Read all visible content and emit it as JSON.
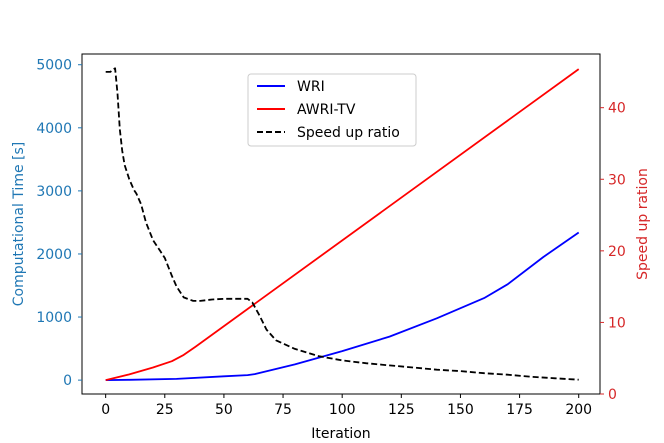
{
  "chart_data": {
    "type": "line",
    "title": "",
    "xlabel": "Iteration",
    "ylabel_left": "Computational Time [s]",
    "ylabel_right": "Speed up ration",
    "xlim": [
      -10,
      209
    ],
    "ylim_left": [
      -220,
      5170
    ],
    "ylim_right": [
      0,
      47.5
    ],
    "x_ticks": [
      0,
      25,
      50,
      75,
      100,
      125,
      150,
      175,
      200
    ],
    "y_ticks_left": [
      0,
      1000,
      2000,
      3000,
      4000,
      5000
    ],
    "y_ticks_right": [
      0,
      10,
      20,
      30,
      40
    ],
    "legend_position": "upper-center",
    "colors": {
      "left_axis": "#1f77b4",
      "right_axis": "#d62728",
      "wri": "#0000ff",
      "awri": "#ff0000",
      "speedup": "#000000"
    },
    "series": [
      {
        "name": "WRI",
        "axis": "left",
        "color": "#0000ff",
        "style": "solid",
        "x": [
          0,
          10,
          30,
          50,
          60,
          63,
          80,
          100,
          120,
          140,
          160,
          170,
          185,
          200
        ],
        "y": [
          0,
          5,
          20,
          60,
          80,
          95,
          250,
          460,
          690,
          980,
          1300,
          1520,
          1950,
          2340
        ]
      },
      {
        "name": "AWRI-TV",
        "axis": "left",
        "color": "#ff0000",
        "style": "solid",
        "x": [
          0,
          10,
          20,
          28,
          33,
          38,
          200
        ],
        "y": [
          0,
          90,
          200,
          300,
          400,
          530,
          4930
        ]
      },
      {
        "name": "Speed up ratio",
        "axis": "right",
        "color": "#000000",
        "style": "dashed",
        "x": [
          0,
          2,
          3,
          4,
          5,
          6,
          7,
          8,
          10,
          12,
          13,
          15,
          17,
          20,
          23,
          25,
          28,
          30,
          33,
          37,
          40,
          45,
          50,
          55,
          57,
          60,
          62,
          65,
          68,
          72,
          80,
          90,
          100,
          110,
          120,
          130,
          140,
          150,
          160,
          170,
          180,
          190,
          200
        ],
        "y": [
          45,
          45,
          45.3,
          45.5,
          42,
          37,
          34,
          32,
          30,
          28.5,
          28,
          26.5,
          24,
          21.5,
          20,
          19,
          16.5,
          15,
          13.5,
          13,
          13,
          13.2,
          13.3,
          13.3,
          13.3,
          13.3,
          12.8,
          11,
          9,
          7.5,
          6.3,
          5.3,
          4.7,
          4.3,
          4,
          3.7,
          3.4,
          3.2,
          2.9,
          2.7,
          2.4,
          2.2,
          2
        ]
      }
    ]
  }
}
